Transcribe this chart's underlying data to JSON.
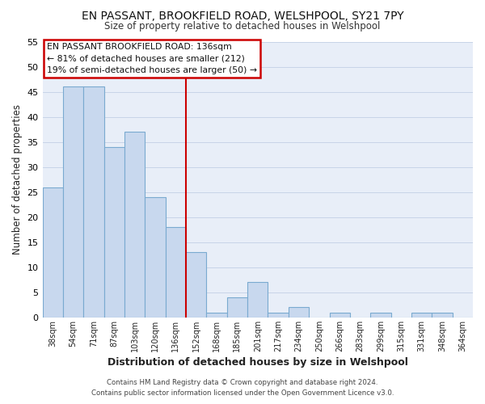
{
  "title": "EN PASSANT, BROOKFIELD ROAD, WELSHPOOL, SY21 7PY",
  "subtitle": "Size of property relative to detached houses in Welshpool",
  "xlabel": "Distribution of detached houses by size in Welshpool",
  "ylabel": "Number of detached properties",
  "bar_labels": [
    "38sqm",
    "54sqm",
    "71sqm",
    "87sqm",
    "103sqm",
    "120sqm",
    "136sqm",
    "152sqm",
    "168sqm",
    "185sqm",
    "201sqm",
    "217sqm",
    "234sqm",
    "250sqm",
    "266sqm",
    "283sqm",
    "299sqm",
    "315sqm",
    "331sqm",
    "348sqm",
    "364sqm"
  ],
  "bar_values": [
    26,
    46,
    46,
    34,
    37,
    24,
    18,
    13,
    1,
    4,
    7,
    1,
    2,
    0,
    1,
    0,
    1,
    0,
    1,
    1,
    0
  ],
  "bar_color": "#c8d8ee",
  "bar_edge_color": "#7aaad0",
  "highlight_index": 6,
  "highlight_line_color": "#cc0000",
  "ylim": [
    0,
    55
  ],
  "yticks": [
    0,
    5,
    10,
    15,
    20,
    25,
    30,
    35,
    40,
    45,
    50,
    55
  ],
  "annotation_title": "EN PASSANT BROOKFIELD ROAD: 136sqm",
  "annotation_line1": "← 81% of detached houses are smaller (212)",
  "annotation_line2": "19% of semi-detached houses are larger (50) →",
  "annotation_box_facecolor": "#ffffff",
  "annotation_box_edgecolor": "#cc0000",
  "footer_line1": "Contains HM Land Registry data © Crown copyright and database right 2024.",
  "footer_line2": "Contains public sector information licensed under the Open Government Licence v3.0.",
  "grid_color": "#c8d4e8",
  "plot_bg_color": "#e8eef8",
  "fig_bg_color": "#ffffff"
}
